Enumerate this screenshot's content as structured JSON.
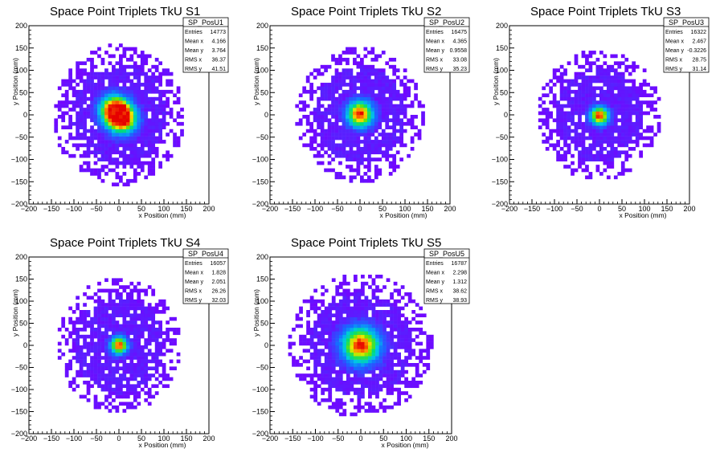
{
  "chart_data": [
    {
      "type": "heatmap",
      "title": "Space Point Triplets TkU S1",
      "xlabel": "x Position (mm)",
      "ylabel": "y Position (mm)",
      "xlim": [
        -200,
        200
      ],
      "ylim": [
        -200,
        200
      ],
      "xticks": [
        "−200",
        "−150",
        "−100",
        "−50",
        "0",
        "50",
        "100",
        "150",
        "200"
      ],
      "yticks": [
        "−200",
        "−150",
        "−100",
        "−50",
        "0",
        "50",
        "100",
        "150",
        "200"
      ],
      "grid": false,
      "stats": {
        "name": "SP_PosU1",
        "rows": [
          {
            "label": "Entries",
            "value": "14773"
          },
          {
            "label": "Mean x",
            "value": "4.166"
          },
          {
            "label": "Mean y",
            "value": "3.764"
          },
          {
            "label": "RMS x",
            "value": "36.37"
          },
          {
            "label": "RMS y",
            "value": "41.51"
          }
        ]
      },
      "distribution": {
        "centers": [
          [
            -10,
            12
          ],
          [
            8,
            -10
          ]
        ],
        "core_width_mm": 22,
        "extent_mm": [
          140,
          150
        ]
      }
    },
    {
      "type": "heatmap",
      "title": "Space Point Triplets TkU S2",
      "xlabel": "x Position (mm)",
      "ylabel": "y Position (mm)",
      "xlim": [
        -200,
        200
      ],
      "ylim": [
        -200,
        200
      ],
      "xticks": [
        "−200",
        "−150",
        "−100",
        "−50",
        "0",
        "50",
        "100",
        "150",
        "200"
      ],
      "yticks": [
        "−200",
        "−150",
        "−100",
        "−50",
        "0",
        "50",
        "100",
        "150",
        "200"
      ],
      "grid": false,
      "stats": {
        "name": "SP_PosU2",
        "rows": [
          {
            "label": "Entries",
            "value": "16475"
          },
          {
            "label": "Mean x",
            "value": "4.365"
          },
          {
            "label": "Mean y",
            "value": "0.9558"
          },
          {
            "label": "RMS x",
            "value": "33.08"
          },
          {
            "label": "RMS y",
            "value": "35.23"
          }
        ]
      },
      "distribution": {
        "centers": [
          [
            0,
            2
          ]
        ],
        "core_width_mm": 20,
        "extent_mm": [
          135,
          145
        ]
      }
    },
    {
      "type": "heatmap",
      "title": "Space Point Triplets TkU S3",
      "xlabel": "x Position (mm)",
      "ylabel": "y Position (mm)",
      "xlim": [
        -200,
        200
      ],
      "ylim": [
        -200,
        200
      ],
      "xticks": [
        "−200",
        "−150",
        "−100",
        "−50",
        "0",
        "50",
        "100",
        "150",
        "200"
      ],
      "yticks": [
        "−200",
        "−150",
        "−100",
        "−50",
        "0",
        "50",
        "100",
        "150",
        "200"
      ],
      "grid": false,
      "stats": {
        "name": "SP_PosU3",
        "rows": [
          {
            "label": "Entries",
            "value": "16322"
          },
          {
            "label": "Mean x",
            "value": "2.467"
          },
          {
            "label": "Mean y",
            "value": "-0.3226"
          },
          {
            "label": "RMS x",
            "value": "28.75"
          },
          {
            "label": "RMS y",
            "value": "31.14"
          }
        ]
      },
      "distribution": {
        "centers": [
          [
            0,
            -2
          ]
        ],
        "core_width_mm": 14,
        "extent_mm": [
          130,
          140
        ]
      }
    },
    {
      "type": "heatmap",
      "title": "Space Point Triplets TkU S4",
      "xlabel": "x Position (mm)",
      "ylabel": "y Position (mm)",
      "xlim": [
        -200,
        200
      ],
      "ylim": [
        -200,
        200
      ],
      "xticks": [
        "−200",
        "−150",
        "−100",
        "−50",
        "0",
        "50",
        "100",
        "150",
        "200"
      ],
      "yticks": [
        "−200",
        "−150",
        "−100",
        "−50",
        "0",
        "50",
        "100",
        "150",
        "200"
      ],
      "grid": false,
      "stats": {
        "name": "SP_PosU4",
        "rows": [
          {
            "label": "Entries",
            "value": "16057"
          },
          {
            "label": "Mean x",
            "value": "1.828"
          },
          {
            "label": "Mean y",
            "value": "2.051"
          },
          {
            "label": "RMS x",
            "value": "26.26"
          },
          {
            "label": "RMS y",
            "value": "32.03"
          }
        ]
      },
      "distribution": {
        "centers": [
          [
            0,
            0
          ]
        ],
        "core_width_mm": 13,
        "extent_mm": [
          130,
          145
        ]
      }
    },
    {
      "type": "heatmap",
      "title": "Space Point Triplets TkU S5",
      "xlabel": "x Position (mm)",
      "ylabel": "y Position (mm)",
      "xlim": [
        -200,
        200
      ],
      "ylim": [
        -200,
        200
      ],
      "xticks": [
        "−200",
        "−150",
        "−100",
        "−50",
        "0",
        "50",
        "100",
        "150",
        "200"
      ],
      "yticks": [
        "−200",
        "−150",
        "−100",
        "−50",
        "0",
        "50",
        "100",
        "150",
        "200"
      ],
      "grid": false,
      "stats": {
        "name": "SP_PosU5",
        "rows": [
          {
            "label": "Entries",
            "value": "16787"
          },
          {
            "label": "Mean x",
            "value": "2.298"
          },
          {
            "label": "Mean y",
            "value": "1.312"
          },
          {
            "label": "RMS x",
            "value": "38.62"
          },
          {
            "label": "RMS y",
            "value": "38.93"
          }
        ]
      },
      "distribution": {
        "centers": [
          [
            0,
            0
          ]
        ],
        "core_width_mm": 28,
        "extent_mm": [
          150,
          155
        ]
      }
    }
  ]
}
